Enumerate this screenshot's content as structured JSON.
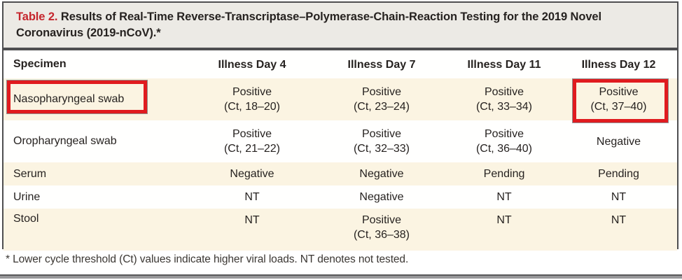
{
  "title": {
    "label": "Table 2.",
    "text": " Results of Real-Time Reverse-Transcriptase–Polymerase-Chain-Reaction Testing for the 2019 Novel Coronavirus (2019-nCoV).*"
  },
  "table": {
    "columns": [
      "Specimen",
      "Illness Day 4",
      "Illness Day 7",
      "Illness Day 11",
      "Illness Day 12"
    ],
    "rows": [
      {
        "specimen": "Nasopharyngeal swab",
        "cells": [
          "Positive\n(Ct, 18–20)",
          "Positive\n(Ct, 23–24)",
          "Positive\n(Ct, 33–34)",
          "Positive\n(Ct, 37–40)"
        ],
        "highlights": [
          "specimen",
          "illness-day-12"
        ]
      },
      {
        "specimen": "Oropharyngeal swab",
        "cells": [
          "Positive\n(Ct, 21–22)",
          "Positive\n(Ct, 32–33)",
          "Positive\n(Ct, 36–40)",
          "Negative"
        ]
      },
      {
        "specimen": "Serum",
        "cells": [
          "Negative",
          "Negative",
          "Pending",
          "Pending"
        ]
      },
      {
        "specimen": "Urine",
        "cells": [
          "NT",
          "Negative",
          "NT",
          "NT"
        ]
      },
      {
        "specimen": "Stool",
        "cells": [
          "NT",
          "Positive\n(Ct, 36–38)",
          "NT",
          "NT"
        ]
      }
    ]
  },
  "footnote": "* Lower cycle threshold (Ct) values indicate higher viral loads. NT denotes not tested.",
  "colors": {
    "accent_red": "#c5262d",
    "highlight_red": "#e01b1f",
    "row_beige": "#fbf4e2",
    "title_gray": "#eceae5",
    "border_gray": "#4e4e50"
  }
}
